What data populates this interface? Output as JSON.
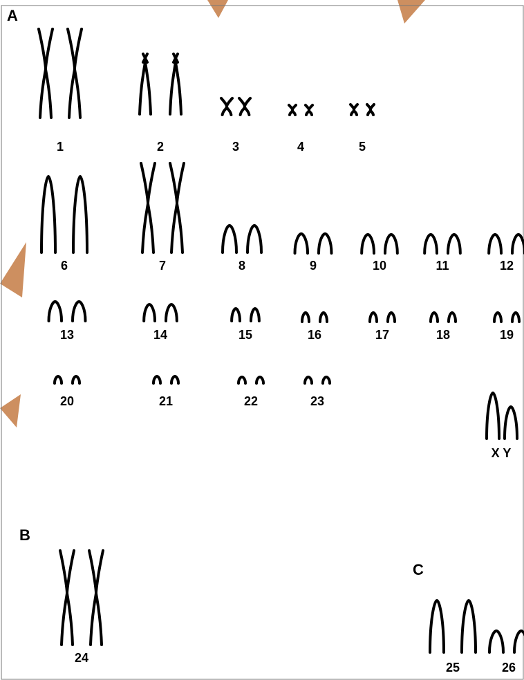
{
  "panels": {
    "a": "A",
    "b": "B",
    "c": "C"
  },
  "karyotype": {
    "chromosomes": [
      {
        "label": "1",
        "shape": "x-long"
      },
      {
        "label": "2",
        "shape": "tall-tip"
      },
      {
        "label": "3",
        "shape": "x-small"
      },
      {
        "label": "4",
        "shape": "x-tiny"
      },
      {
        "label": "5",
        "shape": "x-tiny"
      },
      {
        "label": "6",
        "shape": "arch-tall"
      },
      {
        "label": "7",
        "shape": "x-long"
      },
      {
        "label": "8",
        "shape": "arch"
      },
      {
        "label": "9",
        "shape": "arch"
      },
      {
        "label": "10",
        "shape": "arch"
      },
      {
        "label": "11",
        "shape": "arch"
      },
      {
        "label": "12",
        "shape": "arch"
      },
      {
        "label": "13",
        "shape": "arch"
      },
      {
        "label": "14",
        "shape": "arch"
      },
      {
        "label": "15",
        "shape": "arch"
      },
      {
        "label": "16",
        "shape": "arch"
      },
      {
        "label": "17",
        "shape": "arch"
      },
      {
        "label": "18",
        "shape": "arch"
      },
      {
        "label": "19",
        "shape": "arch"
      },
      {
        "label": "20",
        "shape": "arch"
      },
      {
        "label": "21",
        "shape": "arch"
      },
      {
        "label": "22",
        "shape": "arch"
      },
      {
        "label": "23",
        "shape": "arch"
      },
      {
        "label": "X Y",
        "shape": "arch-sex"
      },
      {
        "label": "24",
        "shape": "x-long"
      },
      {
        "label": "25",
        "shape": "arch-tall"
      },
      {
        "label": "26",
        "shape": "arch"
      }
    ]
  },
  "colors": {
    "ink": "#000000",
    "watermark": "#c8834f"
  }
}
